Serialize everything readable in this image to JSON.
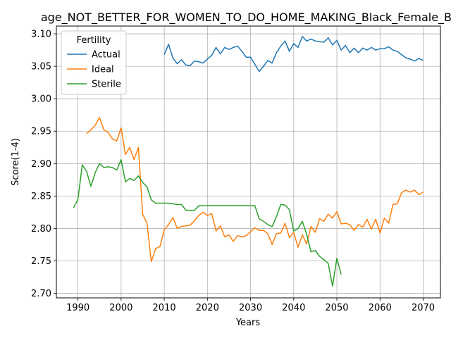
{
  "chart_data": {
    "type": "line",
    "title": "age_NOT_BETTER_FOR_WOMEN_TO_DO_HOME_MAKING_Black_Female_Below",
    "xlabel": "Years",
    "ylabel": "Score(1-4)",
    "xlim": [
      1985,
      2074
    ],
    "ylim": [
      2.693,
      3.112
    ],
    "xticks": [
      1990,
      2000,
      2010,
      2020,
      2030,
      2040,
      2050,
      2060,
      2070
    ],
    "yticks": [
      2.7,
      2.75,
      2.8,
      2.85,
      2.9,
      2.95,
      3.0,
      3.05,
      3.1
    ],
    "xtick_labels": [
      "1990",
      "2000",
      "2010",
      "2020",
      "2030",
      "2040",
      "2050",
      "2060",
      "2070"
    ],
    "ytick_labels": [
      "2.70",
      "2.75",
      "2.80",
      "2.85",
      "2.90",
      "2.95",
      "3.00",
      "3.05",
      "3.10"
    ],
    "grid": true,
    "legend": {
      "title": "Fertility",
      "position": "top-left"
    },
    "series": [
      {
        "name": "Actual",
        "color": "#1f77b4",
        "x": [
          2010,
          2011,
          2012,
          2013,
          2014,
          2015,
          2016,
          2017,
          2018,
          2019,
          2020,
          2021,
          2022,
          2023,
          2024,
          2025,
          2026,
          2027,
          2028,
          2029,
          2030,
          2031,
          2032,
          2033,
          2034,
          2035,
          2036,
          2037,
          2038,
          2039,
          2040,
          2041,
          2042,
          2043,
          2044,
          2045,
          2046,
          2047,
          2048,
          2049,
          2050,
          2051,
          2052,
          2053,
          2054,
          2055,
          2056,
          2057,
          2058,
          2059,
          2060,
          2061,
          2062,
          2063,
          2064,
          2065,
          2066,
          2067,
          2068,
          2069,
          2070
        ],
        "y": [
          3.068,
          3.084,
          3.063,
          3.054,
          3.06,
          3.052,
          3.051,
          3.058,
          3.057,
          3.055,
          3.061,
          3.067,
          3.079,
          3.069,
          3.079,
          3.076,
          3.079,
          3.081,
          3.073,
          3.064,
          3.064,
          3.053,
          3.042,
          3.05,
          3.059,
          3.055,
          3.071,
          3.081,
          3.089,
          3.073,
          3.085,
          3.079,
          3.096,
          3.089,
          3.092,
          3.089,
          3.088,
          3.087,
          3.094,
          3.083,
          3.09,
          3.075,
          3.082,
          3.071,
          3.078,
          3.071,
          3.078,
          3.075,
          3.079,
          3.075,
          3.077,
          3.077,
          3.08,
          3.075,
          3.073,
          3.068,
          3.063,
          3.061,
          3.058,
          3.062,
          3.059
        ]
      },
      {
        "name": "Ideal",
        "color": "#ff7f0e",
        "x": [
          1992,
          1993,
          1994,
          1995,
          1996,
          1997,
          1998,
          1999,
          2000,
          2001,
          2002,
          2003,
          2004,
          2005,
          2006,
          2007,
          2008,
          2009,
          2010,
          2011,
          2012,
          2013,
          2014,
          2015,
          2016,
          2017,
          2018,
          2019,
          2020,
          2021,
          2022,
          2023,
          2024,
          2025,
          2026,
          2027,
          2028,
          2029,
          2030,
          2031,
          2032,
          2033,
          2034,
          2035,
          2036,
          2037,
          2038,
          2039,
          2040,
          2041,
          2042,
          2043,
          2044,
          2045,
          2046,
          2047,
          2048,
          2049,
          2050,
          2051,
          2052,
          2053,
          2054,
          2055,
          2056,
          2057,
          2058,
          2059,
          2060,
          2061,
          2062,
          2063,
          2064,
          2065,
          2066,
          2067,
          2068,
          2069,
          2070
        ],
        "y": [
          2.946,
          2.952,
          2.959,
          2.971,
          2.952,
          2.948,
          2.938,
          2.935,
          2.955,
          2.914,
          2.925,
          2.906,
          2.925,
          2.822,
          2.808,
          2.749,
          2.769,
          2.772,
          2.798,
          2.806,
          2.817,
          2.8,
          2.803,
          2.804,
          2.805,
          2.812,
          2.82,
          2.825,
          2.82,
          2.823,
          2.796,
          2.804,
          2.787,
          2.79,
          2.78,
          2.789,
          2.787,
          2.789,
          2.795,
          2.801,
          2.797,
          2.797,
          2.792,
          2.775,
          2.792,
          2.793,
          2.808,
          2.786,
          2.794,
          2.771,
          2.79,
          2.776,
          2.803,
          2.794,
          2.815,
          2.811,
          2.822,
          2.816,
          2.826,
          2.807,
          2.808,
          2.806,
          2.797,
          2.806,
          2.802,
          2.814,
          2.799,
          2.814,
          2.793,
          2.816,
          2.808,
          2.837,
          2.838,
          2.855,
          2.859,
          2.856,
          2.859,
          2.852,
          2.856
        ]
      },
      {
        "name": "Sterile",
        "color": "#2ca02c",
        "x": [
          1989,
          1990,
          1991,
          1992,
          1993,
          1994,
          1995,
          1996,
          1997,
          1998,
          1999,
          2000,
          2001,
          2002,
          2003,
          2004,
          2005,
          2006,
          2007,
          2008,
          2009,
          2010,
          2011,
          2012,
          2013,
          2014,
          2015,
          2016,
          2017,
          2018,
          2019,
          2020,
          2021,
          2022,
          2023,
          2024,
          2025,
          2026,
          2027,
          2028,
          2029,
          2030,
          2031,
          2032,
          2033,
          2034,
          2035,
          2036,
          2037,
          2038,
          2039,
          2040,
          2041,
          2042,
          2043,
          2044,
          2045,
          2046,
          2047,
          2048,
          2049,
          2050,
          2051
        ],
        "y": [
          2.832,
          2.845,
          2.898,
          2.888,
          2.865,
          2.886,
          2.9,
          2.894,
          2.895,
          2.894,
          2.89,
          2.906,
          2.872,
          2.877,
          2.874,
          2.881,
          2.871,
          2.864,
          2.844,
          2.839,
          2.839,
          2.839,
          2.839,
          2.838,
          2.837,
          2.837,
          2.828,
          2.828,
          2.828,
          2.835,
          2.835,
          2.835,
          2.835,
          2.835,
          2.835,
          2.835,
          2.835,
          2.835,
          2.835,
          2.835,
          2.835,
          2.835,
          2.835,
          2.815,
          2.811,
          2.806,
          2.803,
          2.818,
          2.837,
          2.836,
          2.829,
          2.796,
          2.8,
          2.811,
          2.791,
          2.764,
          2.766,
          2.757,
          2.752,
          2.746,
          2.711,
          2.754,
          2.729
        ]
      }
    ]
  }
}
